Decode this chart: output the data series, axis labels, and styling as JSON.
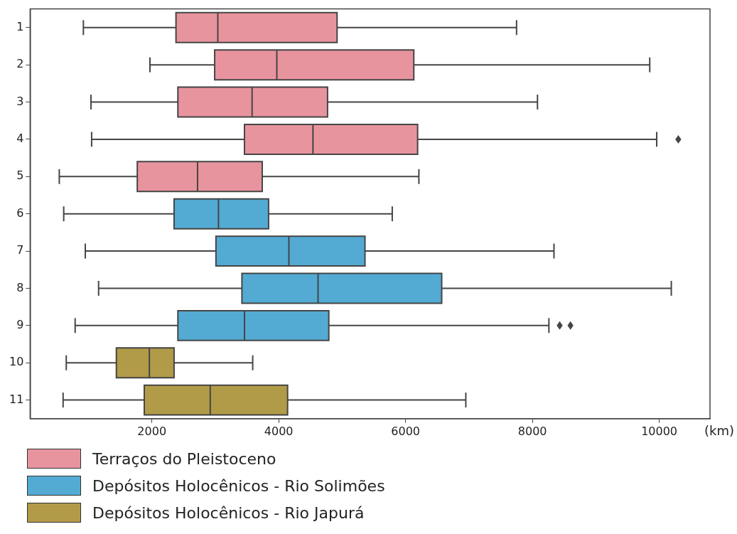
{
  "chart_data": {
    "type": "box",
    "orientation": "horizontal",
    "xlabel": "(km)",
    "legend": "bottom",
    "categories": [
      "1",
      "2",
      "3",
      "4",
      "5",
      "6",
      "7",
      "8",
      "9",
      "10",
      "11"
    ],
    "xlim": [
      80,
      10800
    ],
    "xticks": [
      2000,
      4000,
      6000,
      8000,
      10000
    ],
    "series": [
      {
        "name": "Terraços do Pleistoceno",
        "color": "#e8949f",
        "boxes": [
          {
            "low": 920,
            "q1": 2380,
            "median": 3040,
            "q3": 4920,
            "high": 7750
          },
          {
            "low": 1970,
            "q1": 2990,
            "median": 3970,
            "q3": 6130,
            "high": 9850
          },
          {
            "low": 1040,
            "q1": 2410,
            "median": 3580,
            "q3": 4770,
            "high": 8080
          },
          {
            "low": 1050,
            "q1": 3460,
            "median": 4540,
            "q3": 6190,
            "high": 9960,
            "outliers": [
              10300
            ]
          },
          {
            "low": 540,
            "q1": 1770,
            "median": 2720,
            "q3": 3740,
            "high": 6210
          },
          null,
          null,
          null,
          null,
          null,
          null
        ]
      },
      {
        "name": "Depósitos Holocênicos - Rio Solimões",
        "color": "#53abd3",
        "boxes": [
          null,
          null,
          null,
          null,
          null,
          {
            "low": 610,
            "q1": 2350,
            "median": 3050,
            "q3": 3840,
            "high": 5790
          },
          {
            "low": 950,
            "q1": 3010,
            "median": 4160,
            "q3": 5360,
            "high": 8340
          },
          {
            "low": 1160,
            "q1": 3420,
            "median": 4620,
            "q3": 6570,
            "high": 10190
          },
          {
            "low": 790,
            "q1": 2410,
            "median": 3460,
            "q3": 4790,
            "high": 8260,
            "outliers": [
              8430,
              8600
            ]
          },
          null,
          null
        ]
      },
      {
        "name": "Depósitos Holocênicos - Rio Japurá",
        "color": "#b29b48",
        "boxes": [
          null,
          null,
          null,
          null,
          null,
          null,
          null,
          null,
          null,
          {
            "low": 650,
            "q1": 1440,
            "median": 1960,
            "q3": 2350,
            "high": 3590
          },
          {
            "low": 600,
            "q1": 1880,
            "median": 2920,
            "q3": 4140,
            "high": 6950
          }
        ]
      }
    ]
  }
}
